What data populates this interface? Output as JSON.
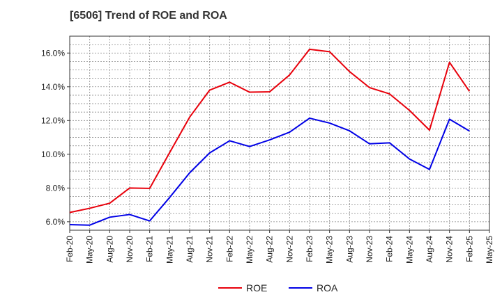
{
  "chart_data": {
    "type": "line",
    "title": "[6506]  Trend of ROE and ROA",
    "xlabel": "",
    "ylabel": "",
    "ylim": [
      5.5,
      17.0
    ],
    "yticks": [
      6.0,
      8.0,
      10.0,
      12.0,
      14.0,
      16.0
    ],
    "ytick_labels": [
      "6.0%",
      "8.0%",
      "10.0%",
      "12.0%",
      "14.0%",
      "16.0%"
    ],
    "x_tick_labels": [
      "Feb-20",
      "May-20",
      "Aug-20",
      "Nov-20",
      "Feb-21",
      "May-21",
      "Aug-21",
      "Nov-21",
      "Feb-22",
      "May-22",
      "Aug-22",
      "Nov-22",
      "Feb-23",
      "May-23",
      "Aug-23",
      "Nov-23",
      "Feb-24",
      "May-24",
      "Aug-24",
      "Nov-24",
      "Feb-25",
      "May-25"
    ],
    "categories": [
      "Feb-20",
      "May-20",
      "Aug-20",
      "Nov-20",
      "Feb-21",
      "May-21",
      "Aug-21",
      "Nov-21",
      "Feb-22",
      "May-22",
      "Aug-22",
      "Nov-22",
      "Feb-23",
      "May-23",
      "Aug-23",
      "Nov-23",
      "Feb-24",
      "May-24",
      "Aug-24",
      "Nov-24",
      "Feb-25"
    ],
    "grid": true,
    "legend_position": "bottom-center",
    "series": [
      {
        "name": "ROE",
        "color": "#e8000b",
        "values": [
          6.55,
          6.8,
          7.1,
          8.0,
          7.98,
          10.1,
          12.2,
          13.8,
          14.27,
          13.68,
          13.7,
          14.7,
          16.22,
          16.08,
          14.9,
          13.95,
          13.58,
          12.6,
          11.43,
          15.45,
          13.73
        ]
      },
      {
        "name": "ROA",
        "color": "#0000e6",
        "values": [
          5.83,
          5.8,
          6.27,
          6.43,
          6.05,
          7.44,
          8.9,
          10.08,
          10.8,
          10.46,
          10.85,
          11.31,
          12.14,
          11.85,
          11.39,
          10.62,
          10.68,
          9.72,
          9.1,
          12.08,
          11.38
        ]
      }
    ]
  }
}
